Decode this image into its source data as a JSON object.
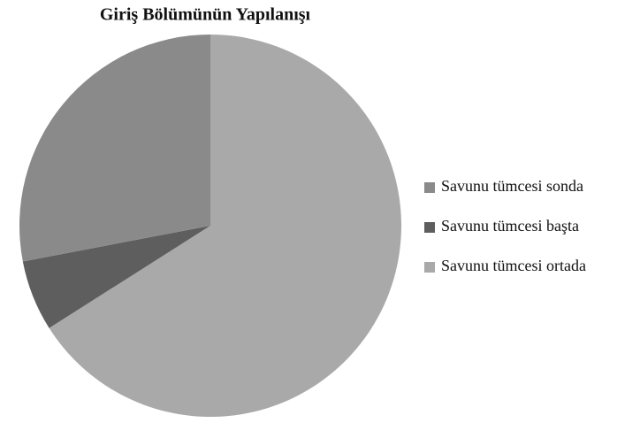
{
  "chart_data": {
    "type": "pie",
    "title": "Giriş Bölümünün Yapılanışı",
    "categories": [
      "Savunu tümcesi sonda",
      "Savunu tümcesi başta",
      "Savunu tümcesi ortada"
    ],
    "values": [
      28,
      6,
      66
    ],
    "colors": [
      "#8a8a8a",
      "#5e5e5e",
      "#a9a9a9"
    ],
    "legend": "right"
  }
}
